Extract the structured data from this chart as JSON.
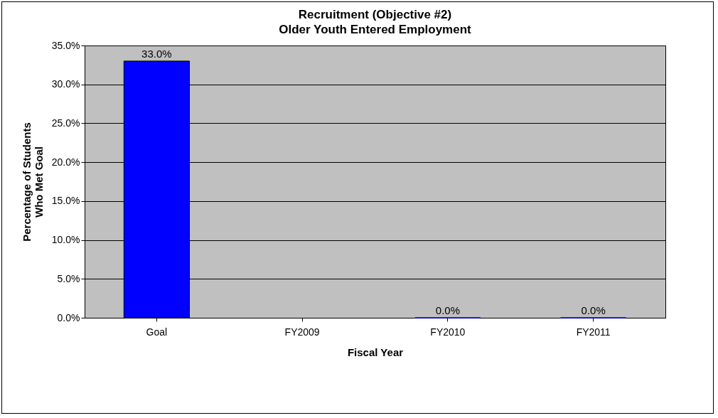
{
  "chart_data": {
    "type": "bar",
    "title": "Recruitment (Objective #2)",
    "subtitle": "Older Youth Entered Employment",
    "xlabel": "Fiscal Year",
    "ylabel": "Percentage of Students\nWho Met Goal",
    "categories": [
      "Goal",
      "FY2009",
      "FY2010",
      "FY2011"
    ],
    "values": [
      33.0,
      null,
      0,
      0
    ],
    "value_labels": [
      "33.0%",
      null,
      "0.0%",
      "0.0%"
    ],
    "color": "#0000ff",
    "ylim": [
      0,
      35
    ],
    "yticks": [
      {
        "value": 0,
        "label": "0.0%"
      },
      {
        "value": 5,
        "label": "5.0%"
      },
      {
        "value": 10,
        "label": "10.0%"
      },
      {
        "value": 15,
        "label": "15.0%"
      },
      {
        "value": 20,
        "label": "20.0%"
      },
      {
        "value": 25,
        "label": "25.0%"
      },
      {
        "value": 30,
        "label": "30.0%"
      },
      {
        "value": 35,
        "label": "35.0%"
      }
    ],
    "grid": "y"
  }
}
